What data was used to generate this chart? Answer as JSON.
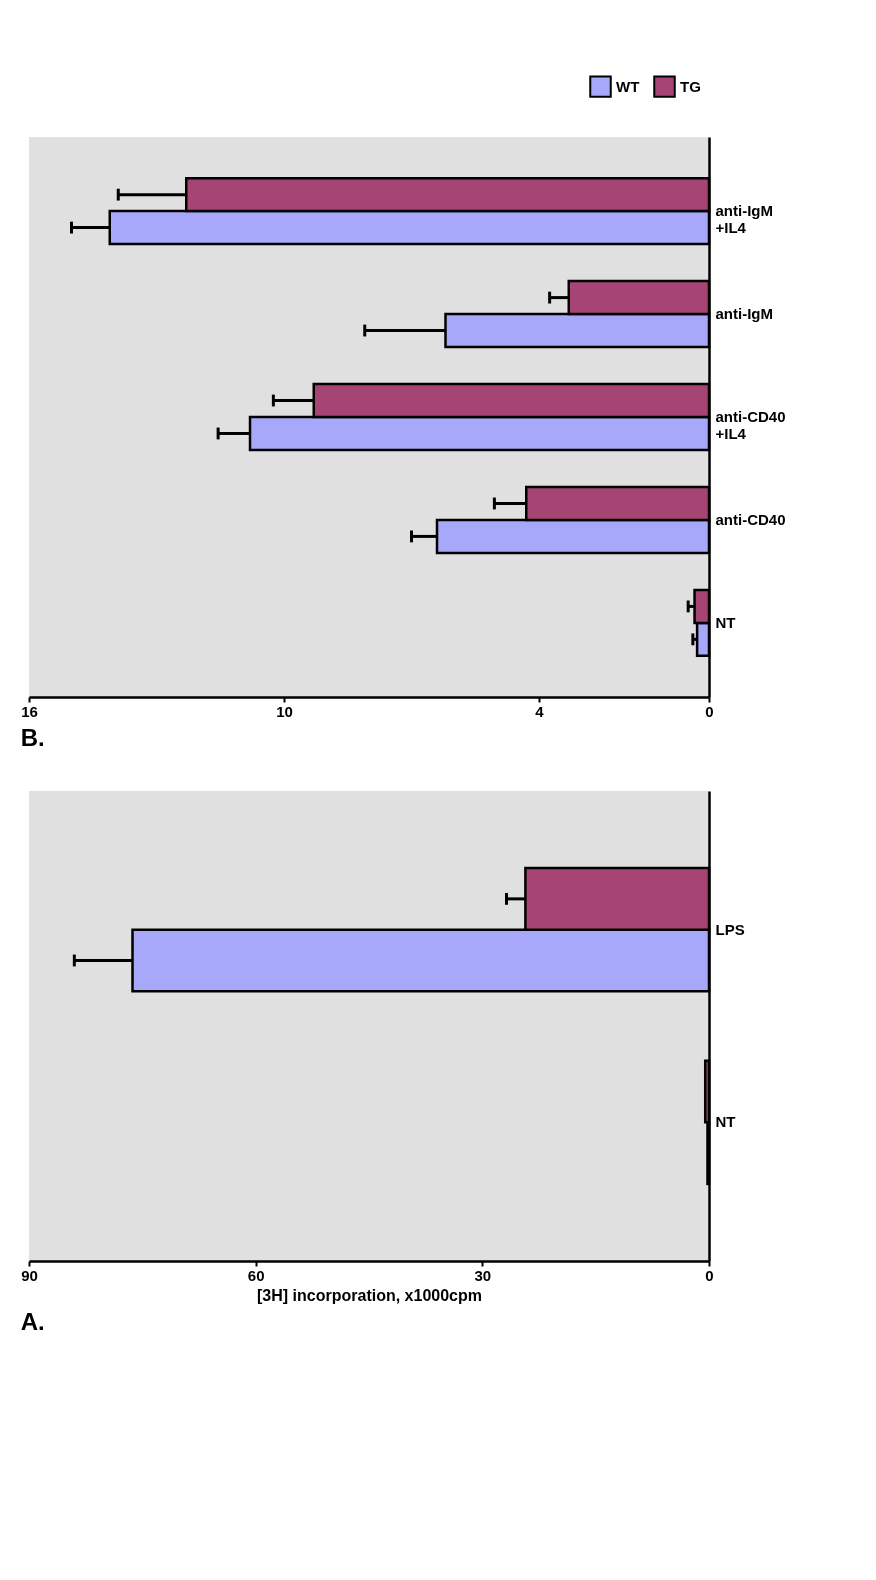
{
  "chart_data": [
    {
      "type": "bar",
      "title": "B.",
      "orientation": "horizontal",
      "categories": [
        "anti-IgM +IL4",
        "anti-IgM",
        "anti-CD40 +IL4",
        "anti-CD40",
        "NT"
      ],
      "series": [
        {
          "name": "WT",
          "color": "#a8a8fa",
          "values": [
            14.1,
            6.2,
            10.8,
            6.4,
            0.28
          ],
          "errors": [
            [
              14.1,
              15.0
            ],
            [
              6.2,
              8.1
            ],
            [
              10.8,
              11.55
            ],
            [
              6.4,
              7.0
            ],
            [
              0.28,
              0.38
            ]
          ]
        },
        {
          "name": "TG",
          "color": "#a64574",
          "values": [
            12.3,
            3.3,
            9.3,
            4.3,
            0.34
          ],
          "errors": [
            [
              12.3,
              13.9
            ],
            [
              3.3,
              3.75
            ],
            [
              9.3,
              10.25
            ],
            [
              4.3,
              5.05
            ],
            [
              0.34,
              0.49
            ]
          ]
        }
      ],
      "xlim": [
        16,
        0
      ],
      "xticks": [
        16,
        10,
        4,
        0
      ],
      "grid": false,
      "legend": "top right"
    },
    {
      "type": "bar",
      "title": "A.",
      "orientation": "horizontal",
      "xlabel": "[3H] incorporation, x1000cpm",
      "categories": [
        "LPS",
        "NT"
      ],
      "series": [
        {
          "color": "#a8a8fa",
          "values": [
            76.3,
            0.2
          ],
          "errors": [
            [
              76.3,
              84.0
            ],
            null
          ]
        },
        {
          "color": "#a64574",
          "values": [
            24.3,
            0.5
          ],
          "errors": [
            [
              24.3,
              26.8
            ],
            null
          ]
        }
      ],
      "xlim": [
        90,
        0
      ],
      "xticks": [
        90,
        60,
        30,
        0
      ],
      "grid": false
    }
  ]
}
